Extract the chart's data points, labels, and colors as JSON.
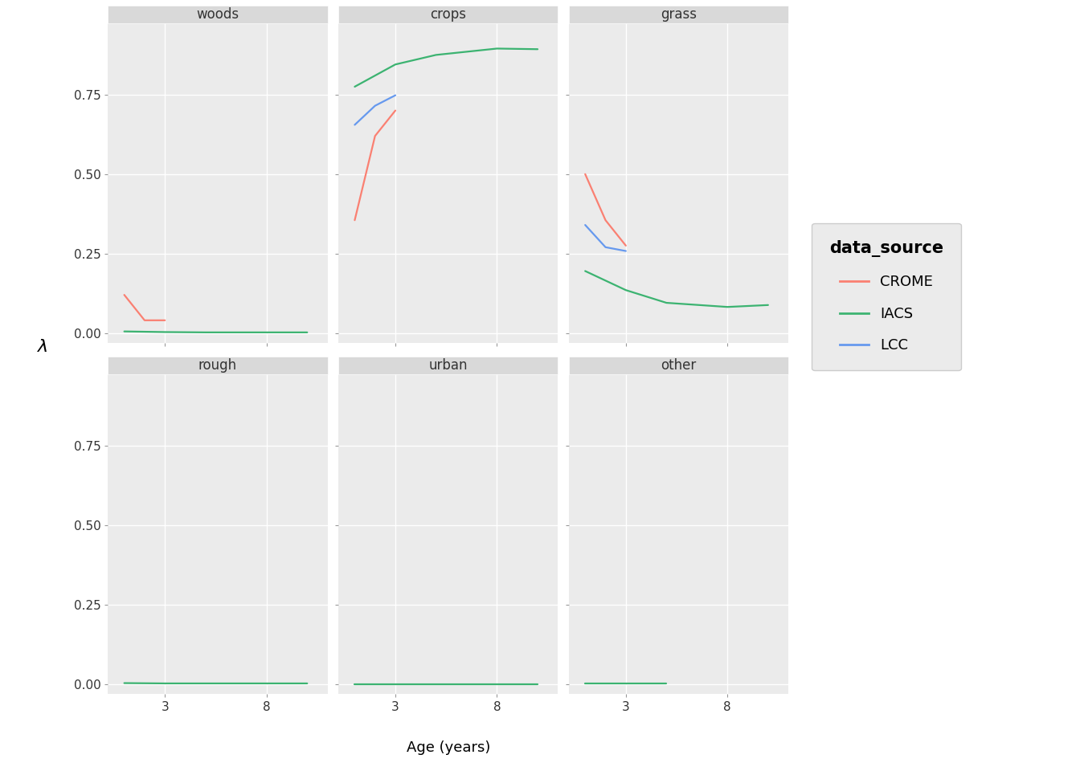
{
  "panels": [
    "woods",
    "crops",
    "grass",
    "rough",
    "urban",
    "other"
  ],
  "ylim": [
    -0.03,
    0.975
  ],
  "y_ticks": [
    0.0,
    0.25,
    0.5,
    0.75
  ],
  "y_tick_labels": [
    "0.00",
    "0.25",
    "0.50",
    "0.75"
  ],
  "xlabel": "Age (years)",
  "ylabel": "λ",
  "legend_title": "data_source",
  "legend_entries": [
    "CROME",
    "IACS",
    "LCC"
  ],
  "colors": {
    "CROME": "#FA8072",
    "IACS": "#3CB371",
    "LCC": "#6699EE"
  },
  "data": {
    "woods": {
      "CROME": {
        "x": [
          1,
          2,
          3
        ],
        "y": [
          0.12,
          0.04,
          0.04
        ]
      },
      "IACS": {
        "x": [
          1,
          3,
          5,
          8,
          10
        ],
        "y": [
          0.005,
          0.003,
          0.002,
          0.002,
          0.002
        ]
      },
      "LCC": null
    },
    "crops": {
      "CROME": {
        "x": [
          1,
          2,
          3
        ],
        "y": [
          0.355,
          0.62,
          0.7
        ]
      },
      "IACS": {
        "x": [
          1,
          3,
          5,
          8,
          10
        ],
        "y": [
          0.775,
          0.845,
          0.875,
          0.895,
          0.893
        ]
      },
      "LCC": {
        "x": [
          1,
          2,
          3
        ],
        "y": [
          0.655,
          0.715,
          0.748
        ]
      }
    },
    "grass": {
      "CROME": {
        "x": [
          1,
          2,
          3
        ],
        "y": [
          0.5,
          0.355,
          0.275
        ]
      },
      "IACS": {
        "x": [
          1,
          3,
          5,
          8,
          10
        ],
        "y": [
          0.195,
          0.135,
          0.095,
          0.082,
          0.088
        ]
      },
      "LCC": {
        "x": [
          1,
          2,
          3
        ],
        "y": [
          0.34,
          0.27,
          0.258
        ]
      }
    },
    "rough": {
      "CROME": null,
      "IACS": {
        "x": [
          1,
          3,
          5,
          8,
          10
        ],
        "y": [
          0.004,
          0.003,
          0.003,
          0.003,
          0.003
        ]
      },
      "LCC": null
    },
    "urban": {
      "CROME": null,
      "IACS": {
        "x": [
          1,
          3,
          5,
          8,
          10
        ],
        "y": [
          0.0,
          0.0,
          0.0,
          0.0,
          0.0
        ]
      },
      "LCC": null
    },
    "other": {
      "CROME": null,
      "IACS": {
        "x": [
          1,
          3,
          5
        ],
        "y": [
          0.003,
          0.003,
          0.003
        ]
      },
      "LCC": null
    }
  },
  "background_color": "#EBEBEB",
  "grid_color": "#FFFFFF",
  "strip_bg": "#D9D9D9",
  "figure_bg": "#FFFFFF",
  "xlim": [
    0.2,
    11.0
  ],
  "linewidth": 1.6
}
